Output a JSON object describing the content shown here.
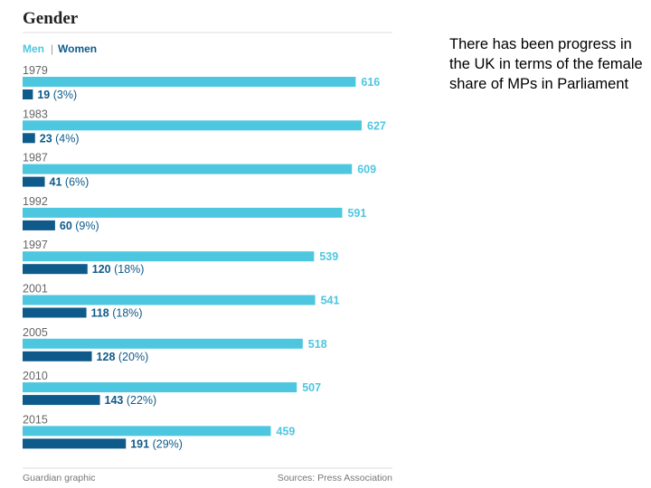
{
  "chart_data": {
    "type": "bar",
    "orientation": "horizontal",
    "title": "Gender",
    "legend": [
      "Men",
      "Women"
    ],
    "categories": [
      "1979",
      "1983",
      "1987",
      "1992",
      "1997",
      "2001",
      "2005",
      "2010",
      "2015"
    ],
    "series": [
      {
        "name": "Men",
        "color": "#4dc6e0",
        "values": [
          616,
          627,
          609,
          591,
          539,
          541,
          518,
          507,
          459
        ],
        "labels": [
          "616",
          "627",
          "609",
          "591",
          "539",
          "541",
          "518",
          "507",
          "459"
        ]
      },
      {
        "name": "Women",
        "color": "#0e5a8a",
        "values": [
          19,
          23,
          41,
          60,
          120,
          118,
          128,
          143,
          191
        ],
        "labels": [
          "19",
          "23",
          "41",
          "60",
          "120",
          "118",
          "128",
          "143",
          "191"
        ],
        "pct_labels": [
          "(3%)",
          "(4%)",
          "(6%)",
          "(9%)",
          "(18%)",
          "(18%)",
          "(20%)",
          "(22%)",
          "(29%)"
        ]
      }
    ],
    "xlim": [
      0,
      627
    ],
    "footer_left": "Guardian graphic",
    "footer_right": "Sources: Press Association"
  },
  "note": {
    "text": "There has been progress in the UK in terms of the female share of MPs in Parliament"
  }
}
